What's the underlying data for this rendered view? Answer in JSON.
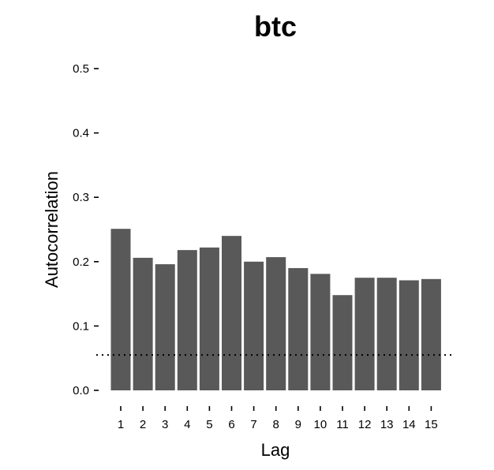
{
  "chart_data": {
    "type": "bar",
    "title": "btc",
    "xlabel": "Lag",
    "ylabel": "Autocorrelation",
    "categories": [
      "1",
      "2",
      "3",
      "4",
      "5",
      "6",
      "7",
      "8",
      "9",
      "10",
      "11",
      "12",
      "13",
      "14",
      "15"
    ],
    "values": [
      0.251,
      0.206,
      0.196,
      0.218,
      0.222,
      0.24,
      0.2,
      0.207,
      0.19,
      0.181,
      0.148,
      0.175,
      0.175,
      0.171,
      0.173
    ],
    "ylim": [
      0,
      0.5
    ],
    "yticks": [
      0.0,
      0.1,
      0.2,
      0.3,
      0.4,
      0.5
    ],
    "ytick_labels": [
      "0.0",
      "0.1",
      "0.2",
      "0.3",
      "0.4",
      "0.5"
    ],
    "reference_line": 0.055,
    "bar_color": "#595959",
    "grid": false,
    "legend": "none"
  }
}
